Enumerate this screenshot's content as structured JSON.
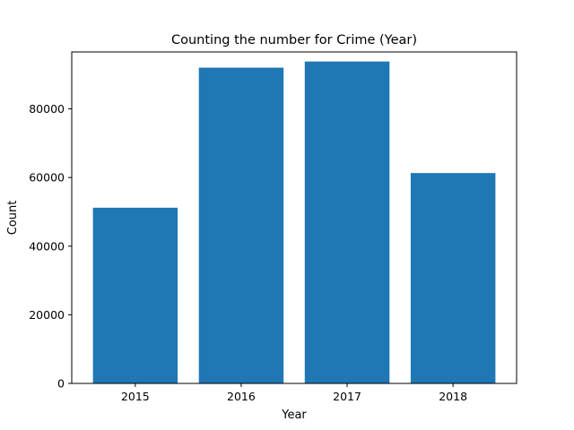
{
  "chart_data": {
    "type": "bar",
    "title": "Counting the number for Crime (Year)",
    "xlabel": "Year",
    "ylabel": "Count",
    "categories": [
      "2015",
      "2016",
      "2017",
      "2018"
    ],
    "values": [
      51200,
      92000,
      93800,
      61300
    ],
    "ylim": [
      0,
      96580
    ],
    "yticks": [
      0,
      20000,
      40000,
      60000,
      80000
    ],
    "bar_color": "#1f77b4",
    "grid": false,
    "legend": "none"
  }
}
